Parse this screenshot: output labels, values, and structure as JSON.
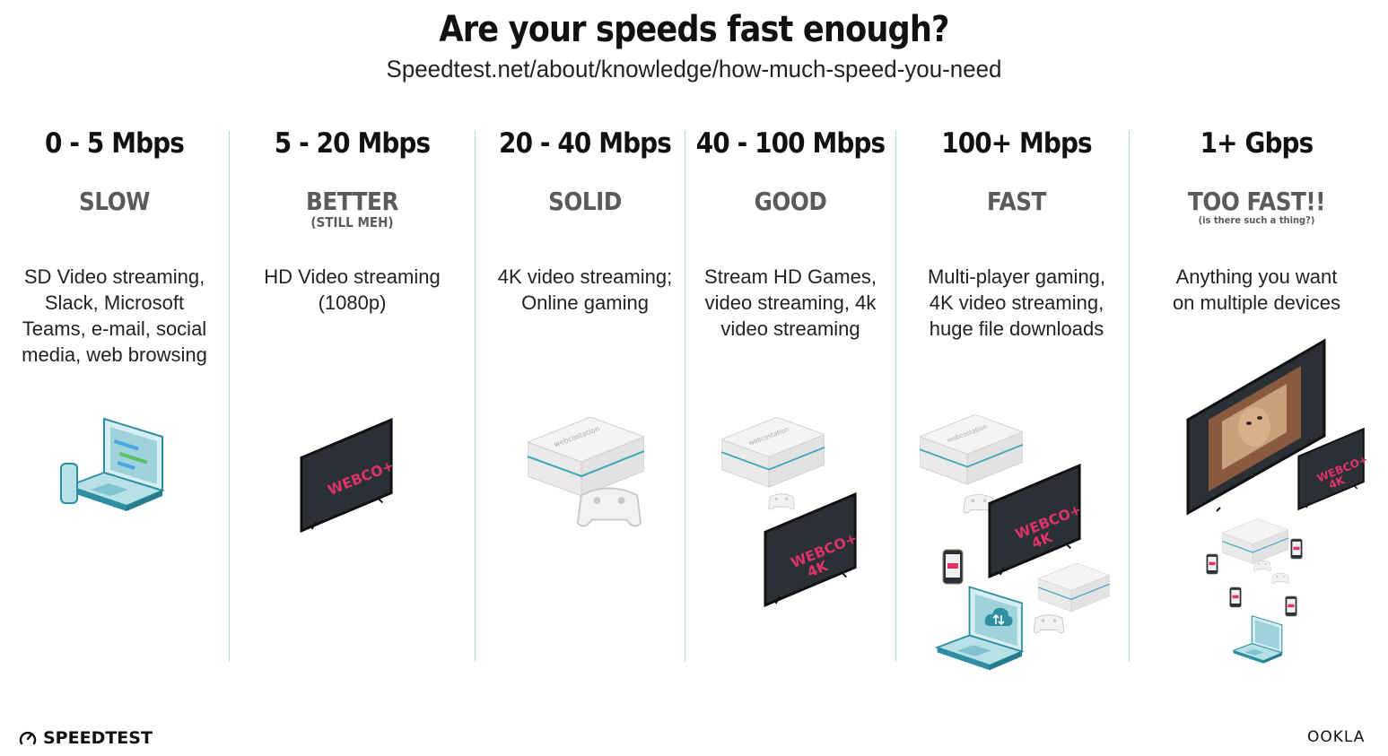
{
  "header": {
    "title": "Are your speeds fast enough?",
    "subtitle": "Speedtest.net/about/knowledge/how-much-speed-you-need"
  },
  "tiers": [
    {
      "speed": "0 - 5 Mbps",
      "rating": "SLOW",
      "note": "",
      "desc": [
        "SD Video streaming,",
        "Slack, Microsoft",
        "Teams, e-mail, social",
        "media, web browsing"
      ]
    },
    {
      "speed": "5 - 20 Mbps",
      "rating": "BETTER",
      "note": "(STILL MEH)",
      "desc": [
        "HD Video streaming",
        "(1080p)"
      ]
    },
    {
      "speed": "20 - 40 Mbps",
      "rating": "SOLID",
      "note": "",
      "desc": [
        "4K video streaming;",
        "Online gaming"
      ]
    },
    {
      "speed": "40 - 100 Mbps",
      "rating": "GOOD",
      "note": "",
      "desc": [
        "Stream HD Games,",
        "video streaming, 4k",
        "video streaming"
      ]
    },
    {
      "speed": "100+ Mbps",
      "rating": "FAST",
      "note": "",
      "desc": [
        "Multi-player gaming,",
        "4K video streaming,",
        "huge file downloads"
      ]
    },
    {
      "speed": "1+ Gbps",
      "rating": "TOO FAST!!",
      "note": "(is there such a thing?)",
      "desc": [
        "Anything you want",
        "on multiple devices"
      ]
    }
  ],
  "illustration_text": {
    "tv_brand": "WEBCO+",
    "tv_4k": "4K",
    "console_brand": "webcostation"
  },
  "footer": {
    "brand_left": "SPEEDTEST",
    "brand_right": "OOKLA"
  },
  "colors": {
    "divider": "#b9d6db",
    "accent_pink": "#e0336a",
    "console_stripe": "#3aa6b8",
    "laptop_blue": "#9fd3dc",
    "tv_screen": "#2b2f36"
  },
  "icons": [
    "laptop-icon",
    "phone-icon",
    "tv-icon",
    "game-console-icon",
    "gamepad-icon",
    "cloud-transfer-icon",
    "speedometer-icon"
  ]
}
